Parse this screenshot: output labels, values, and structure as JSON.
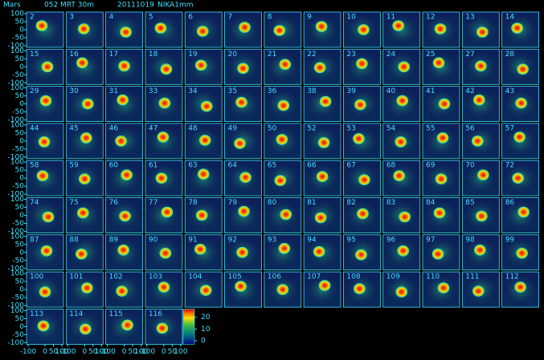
{
  "header": {
    "source": "Mars",
    "scan": "052 MRT 30m",
    "date": "20111019",
    "instrument": "NIKA1mm"
  },
  "panels": [
    [
      "2",
      "3",
      "4",
      "5",
      "6",
      "7",
      "8",
      "9",
      "10",
      "11",
      "12",
      "13",
      "14"
    ],
    [
      "15",
      "16",
      "17",
      "18",
      "19",
      "20",
      "21",
      "22",
      "23",
      "24",
      "25",
      "27",
      "28"
    ],
    [
      "29",
      "30",
      "31",
      "33",
      "34",
      "35",
      "36",
      "38",
      "39",
      "40",
      "41",
      "42",
      "43"
    ],
    [
      "44",
      "45",
      "46",
      "47",
      "48",
      "49",
      "50",
      "52",
      "53",
      "54",
      "55",
      "56",
      "57"
    ],
    [
      "58",
      "59",
      "60",
      "61",
      "63",
      "64",
      "65",
      "66",
      "67",
      "68",
      "69",
      "70",
      "72"
    ],
    [
      "74",
      "75",
      "76",
      "77",
      "78",
      "79",
      "80",
      "81",
      "82",
      "83",
      "84",
      "85",
      "86"
    ],
    [
      "87",
      "88",
      "89",
      "90",
      "91",
      "92",
      "93",
      "94",
      "95",
      "96",
      "97",
      "98",
      "99"
    ],
    [
      "100",
      "101",
      "102",
      "103",
      "104",
      "105",
      "106",
      "107",
      "108",
      "109",
      "110",
      "111",
      "112"
    ],
    [
      "113",
      "114",
      "115",
      "116"
    ]
  ],
  "yticks": [
    100,
    50,
    0,
    -50,
    -100
  ],
  "xticks": [
    -100,
    0,
    50,
    100
  ],
  "colorbar": {
    "lim": [
      -3,
      27
    ],
    "ticks": [
      20,
      10,
      0
    ]
  }
}
